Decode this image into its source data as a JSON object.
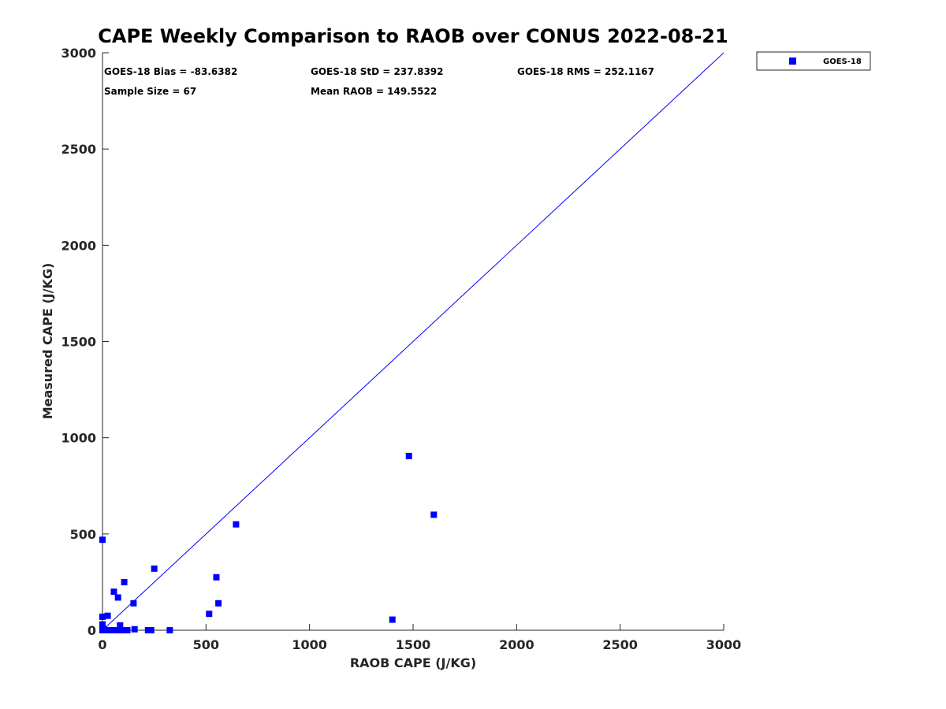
{
  "colors": {
    "series": "#0000ff",
    "axis": "#262626",
    "reference_line": "#0000ff"
  },
  "stats": {
    "bias": "GOES-18 Bias = -83.6382",
    "std": "GOES-18 StD = 237.8392",
    "rms": "GOES-18 RMS = 252.1167",
    "sample_size": "Sample Size = 67",
    "mean_raob": "Mean RAOB = 149.5522"
  },
  "chart_data": {
    "type": "scatter",
    "title": "CAPE Weekly Comparison to RAOB over CONUS 2022-08-21",
    "xlabel": "RAOB CAPE (J/KG)",
    "ylabel": "Measured CAPE (J/KG)",
    "xlim": [
      0,
      3000
    ],
    "ylim": [
      0,
      3000
    ],
    "xticks": [
      0,
      500,
      1000,
      1500,
      2000,
      2500,
      3000
    ],
    "yticks": [
      0,
      500,
      1000,
      1500,
      2000,
      2500,
      3000
    ],
    "reference_line": {
      "from": [
        0,
        0
      ],
      "to": [
        3000,
        3000
      ]
    },
    "legend_position": "outside-top-right",
    "series": [
      {
        "name": "GOES-18",
        "marker": "square",
        "points": [
          [
            0,
            470
          ],
          [
            0,
            70
          ],
          [
            0,
            30
          ],
          [
            0,
            10
          ],
          [
            0,
            0
          ],
          [
            3,
            0
          ],
          [
            8,
            5
          ],
          [
            12,
            0
          ],
          [
            20,
            0
          ],
          [
            25,
            75
          ],
          [
            30,
            0
          ],
          [
            40,
            0
          ],
          [
            50,
            0
          ],
          [
            55,
            200
          ],
          [
            60,
            0
          ],
          [
            70,
            0
          ],
          [
            75,
            170
          ],
          [
            85,
            25
          ],
          [
            90,
            0
          ],
          [
            100,
            0
          ],
          [
            105,
            250
          ],
          [
            110,
            0
          ],
          [
            120,
            0
          ],
          [
            150,
            140
          ],
          [
            155,
            5
          ],
          [
            220,
            0
          ],
          [
            235,
            0
          ],
          [
            250,
            320
          ],
          [
            325,
            0
          ],
          [
            515,
            85
          ],
          [
            550,
            275
          ],
          [
            560,
            140
          ],
          [
            645,
            550
          ],
          [
            1400,
            55
          ],
          [
            1480,
            905
          ],
          [
            1600,
            600
          ]
        ]
      }
    ]
  }
}
